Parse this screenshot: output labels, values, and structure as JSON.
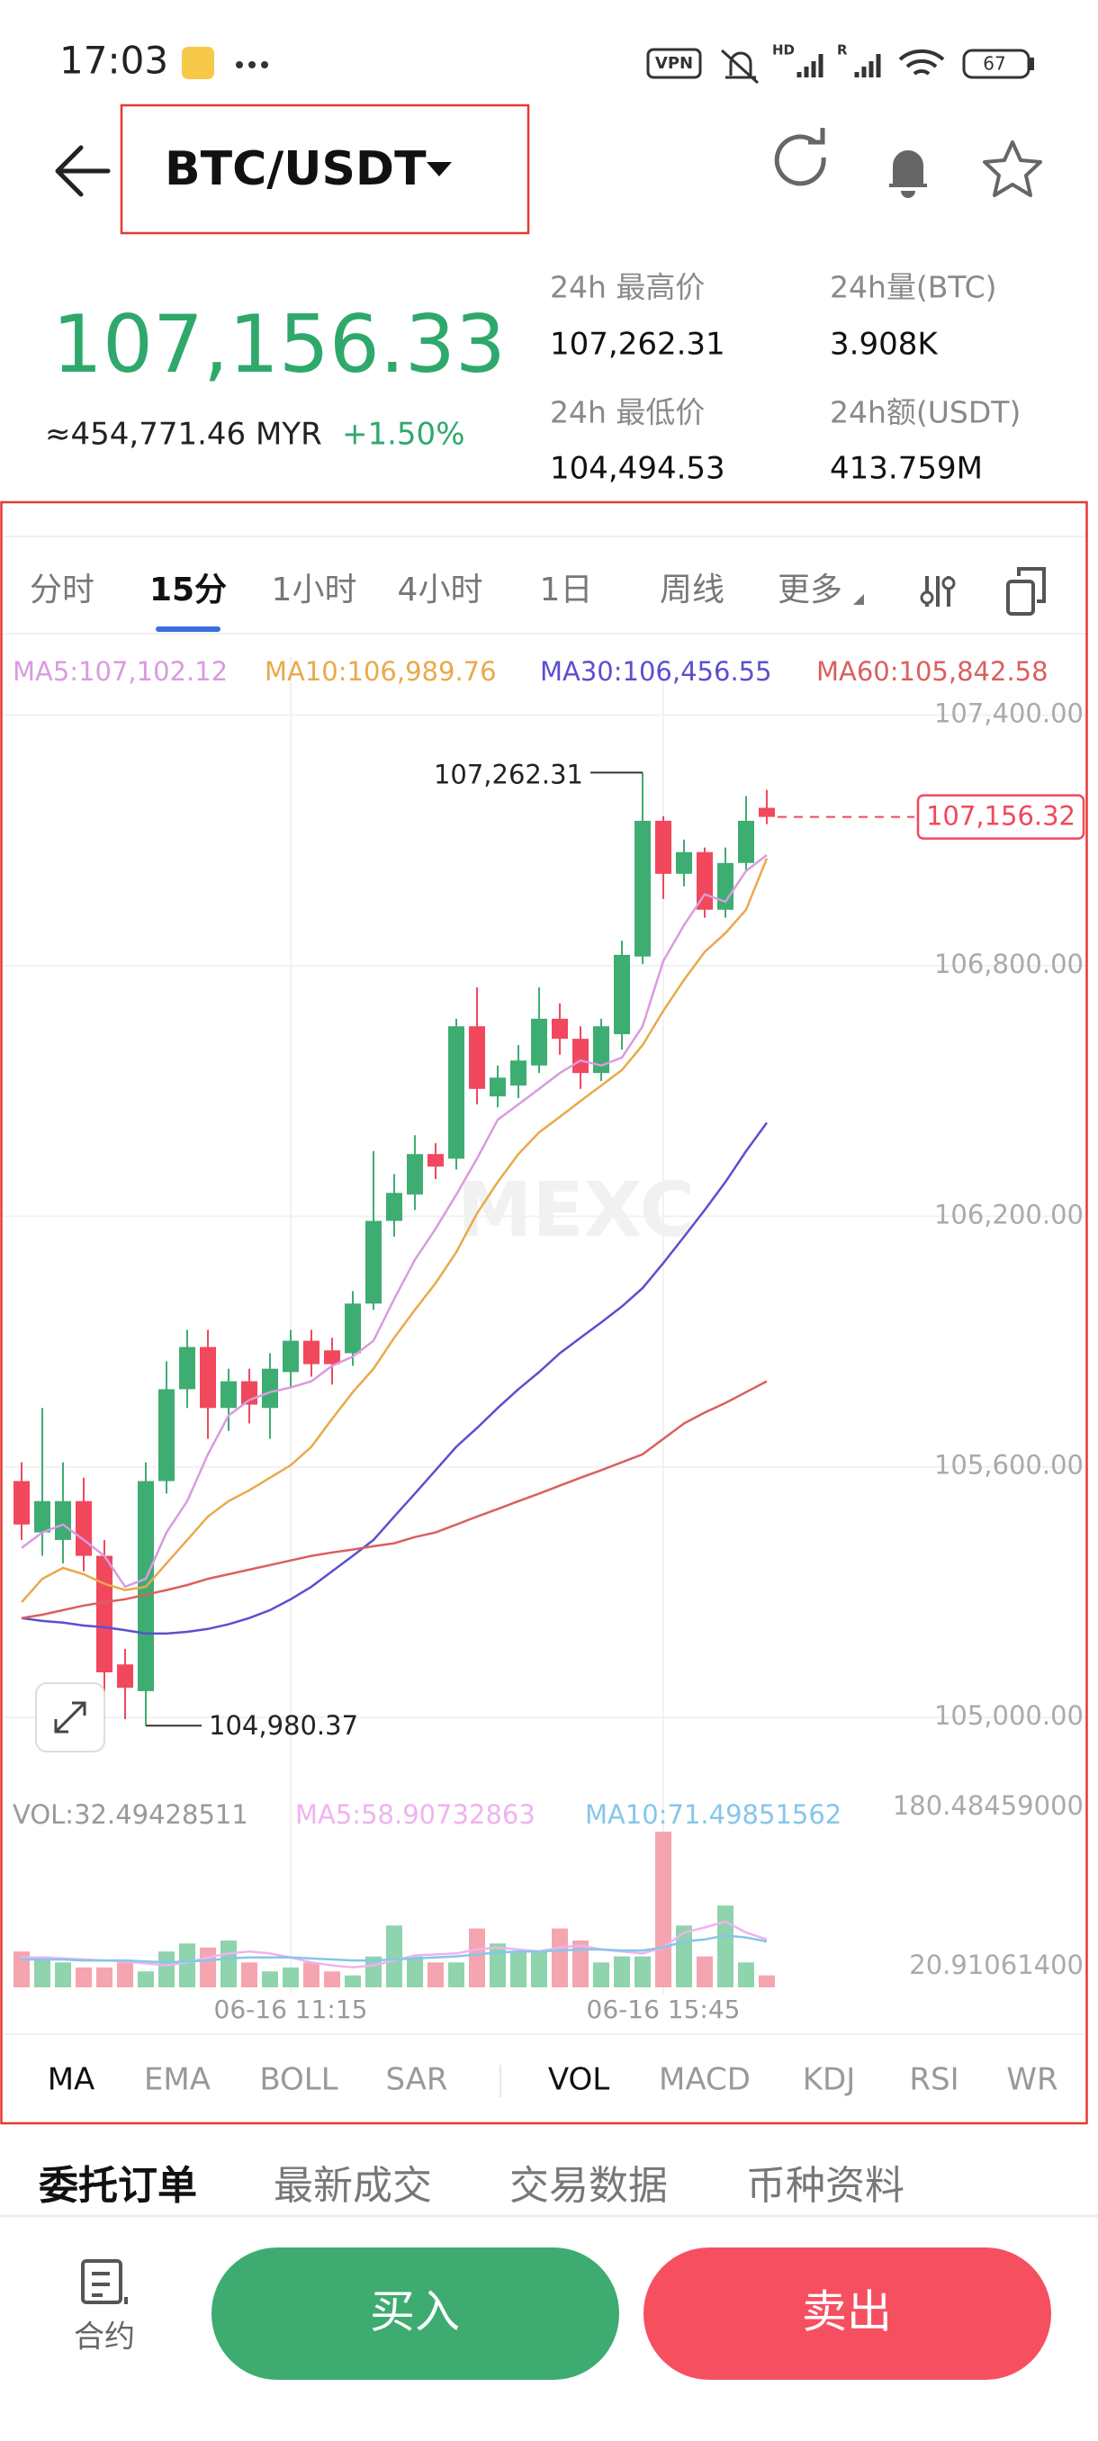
{
  "status_bar": {
    "time": "17:03",
    "vpn": "VPN",
    "sim1": "HD",
    "sim2": "R",
    "battery": "67"
  },
  "header": {
    "pair": "BTC/USDT"
  },
  "ticker": {
    "price": "107,156.33",
    "fiat": "≈454,771.46 MYR",
    "change": "+1.50%",
    "high_label": "24h 最高价",
    "high": "107,262.31",
    "volume_label": "24h量(BTC)",
    "volume": "3.908K",
    "low_label": "24h 最低价",
    "low": "104,494.53",
    "turnover_label": "24h额(USDT)",
    "turnover": "413.759M"
  },
  "period_tabs": [
    "分时",
    "15分",
    "1小时",
    "4小时",
    "1日",
    "周线",
    "更多"
  ],
  "chart_data": [
    {
      "type": "candlestick",
      "categories": [
        null,
        null,
        null,
        null,
        null,
        null,
        null,
        null,
        null,
        null,
        null,
        null,
        null,
        "06-16 11:15",
        null,
        null,
        null,
        null,
        null,
        null,
        null,
        null,
        null,
        null,
        null,
        null,
        null,
        null,
        null,
        null,
        null,
        "06-16 15:45",
        null,
        null,
        null,
        null,
        null
      ],
      "open": [
        105566,
        105443,
        105425,
        105518,
        105387,
        105127,
        105063,
        105566,
        105786,
        105887,
        105741,
        105805,
        105741,
        105827,
        105902,
        105879,
        105872,
        105991,
        106189,
        106252,
        106349,
        106338,
        106655,
        106487,
        106513,
        106561,
        106673,
        106625,
        106543,
        106636,
        106822,
        107147,
        107020,
        107072,
        106934,
        107046,
        107178
      ],
      "high": [
        105611,
        105741,
        105611,
        105574,
        105425,
        105164,
        105611,
        105853,
        105928,
        105928,
        105835,
        105835,
        105872,
        105928,
        105928,
        105909,
        106021,
        106356,
        106301,
        106394,
        106375,
        106673,
        106748,
        106561,
        106610,
        106748,
        106710,
        106655,
        106673,
        106860,
        107262.31,
        107158,
        107102,
        107083,
        107083,
        107206,
        107221
      ],
      "low": [
        105425,
        105387,
        105369,
        105350,
        105015,
        104996,
        104980.37,
        105536,
        105741,
        105667,
        105686,
        105704,
        105667,
        105790,
        105816,
        105797,
        105842,
        105976,
        106151,
        106215,
        106289,
        106312,
        106468,
        106461,
        106483,
        106543,
        106587,
        106505,
        106524,
        106599,
        106804,
        106960,
        106990,
        106915,
        106915,
        107027,
        107139
      ],
      "close": [
        105462,
        105518,
        105518,
        105387,
        105108,
        105071,
        105566,
        105786,
        105887,
        105741,
        105805,
        105749,
        105835,
        105902,
        105846,
        105846,
        105991,
        106189,
        106256,
        106349,
        106319,
        106655,
        106505,
        106532,
        106573,
        106673,
        106625,
        106543,
        106655,
        106826,
        107147,
        107020,
        107072,
        106934,
        107046,
        107147,
        107156.32
      ],
      "up_color": "#3ead72",
      "down_color": "#f1485d",
      "ylim": [
        104830,
        107455
      ],
      "yticks": [
        {
          "value": 105000,
          "label": "105,000.00"
        },
        {
          "value": 105600,
          "label": "105,600.00"
        },
        {
          "value": 106200,
          "label": "106,200.00"
        },
        {
          "value": 106800,
          "label": "106,800.00"
        },
        {
          "value": 107400,
          "label": "107,400.00"
        }
      ],
      "grid": true,
      "series": [
        {
          "name": "MA5:107,102.12",
          "color": "#d99be0",
          "values": [
            105406,
            105443,
            105462,
            105425,
            105387,
            105313,
            105332,
            105443,
            105518,
            105630,
            105723,
            105760,
            105779,
            105790,
            105805,
            105842,
            105864,
            105902,
            106002,
            106096,
            106170,
            106252,
            106338,
            106431,
            106468,
            106505,
            106543,
            106573,
            106561,
            106580,
            106655,
            106811,
            106897,
            106971,
            106953,
            107027,
            107065
          ]
        },
        {
          "name": "MA10:106,989.76",
          "color": "#e9a94b",
          "values": [
            105276,
            105332,
            105358,
            105343,
            105320,
            105305,
            105313,
            105369,
            105425,
            105481,
            105518,
            105544,
            105574,
            105604,
            105648,
            105715,
            105779,
            105835,
            105909,
            105976,
            106040,
            106114,
            106207,
            106282,
            106349,
            106401,
            106438,
            106476,
            106513,
            106550,
            106610,
            106692,
            106766,
            106833,
            106878,
            106934,
            107057
          ]
        },
        {
          "name": "MA30:106,456.55",
          "color": "#5b4fd0",
          "values": [
            105238,
            105231,
            105227,
            105220,
            105216,
            105209,
            105201,
            105201,
            105205,
            105212,
            105223,
            105238,
            105257,
            105283,
            105313,
            105350,
            105387,
            105425,
            105481,
            105536,
            105592,
            105648,
            105693,
            105741,
            105786,
            105827,
            105872,
            105909,
            105946,
            105984,
            106028,
            106088,
            106151,
            106215,
            106282,
            106356,
            106424
          ]
        },
        {
          "name": "MA60:105,842.58",
          "color": "#d9605f",
          "values": [
            105238,
            105246,
            105257,
            105268,
            105276,
            105283,
            105294,
            105305,
            105317,
            105332,
            105343,
            105354,
            105365,
            105376,
            105387,
            105395,
            105402,
            105410,
            105417,
            105432,
            105443,
            105462,
            105481,
            105499,
            105518,
            105536,
            105555,
            105574,
            105592,
            105611,
            105630,
            105667,
            105704,
            105730,
            105753,
            105779,
            105805
          ]
        }
      ],
      "max_label": "107,262.31",
      "min_label": "104,980.37",
      "last_label": "107,156.32",
      "watermark": "MEXC"
    },
    {
      "type": "bar",
      "title": "VOL:32.49428511",
      "values": [
        36,
        31,
        25,
        20,
        20,
        25,
        16,
        36,
        44,
        40,
        47,
        25,
        16,
        20,
        25,
        16,
        12,
        31,
        62,
        31,
        25,
        25,
        59,
        44,
        36,
        36,
        59,
        47,
        25,
        31,
        31,
        156,
        62,
        31,
        82,
        25,
        12
      ],
      "up_color": "#8fd4ad",
      "down_color": "#f5a5b0",
      "ylim": [
        0,
        180.48459
      ],
      "yticks": [
        {
          "value": 20.910614,
          "label": "20.91061400"
        },
        {
          "value": 180.48459,
          "label": "180.48459000"
        }
      ],
      "series": [
        {
          "name": "MA5:58.90732863",
          "color": "#efb3ef",
          "values": [
            30,
            30,
            29,
            28,
            27,
            26,
            24,
            22,
            25,
            30,
            34,
            36,
            34,
            30,
            25,
            22,
            20,
            22,
            27,
            32,
            33,
            34,
            38,
            40,
            38,
            36,
            40,
            42,
            38,
            36,
            34,
            40,
            55,
            60,
            66,
            55,
            48
          ]
        },
        {
          "name": "MA10:71.49851562",
          "color": "#86c6ea",
          "values": [
            28,
            28,
            28,
            27,
            27,
            27,
            26,
            25,
            26,
            27,
            29,
            30,
            30,
            30,
            29,
            28,
            27,
            27,
            28,
            29,
            30,
            31,
            33,
            35,
            36,
            36,
            37,
            38,
            38,
            37,
            37,
            40,
            46,
            48,
            52,
            50,
            46
          ]
        }
      ]
    }
  ],
  "indicator_tabs": [
    "MA",
    "EMA",
    "BOLL",
    "SAR",
    "VOL",
    "MACD",
    "KDJ",
    "RSI",
    "WR"
  ],
  "section_tabs": [
    "委托订单",
    "最新成交",
    "交易数据",
    "币种资料"
  ],
  "bottom_bar": {
    "contract": "合约",
    "buy": "买入",
    "sell": "卖出"
  }
}
